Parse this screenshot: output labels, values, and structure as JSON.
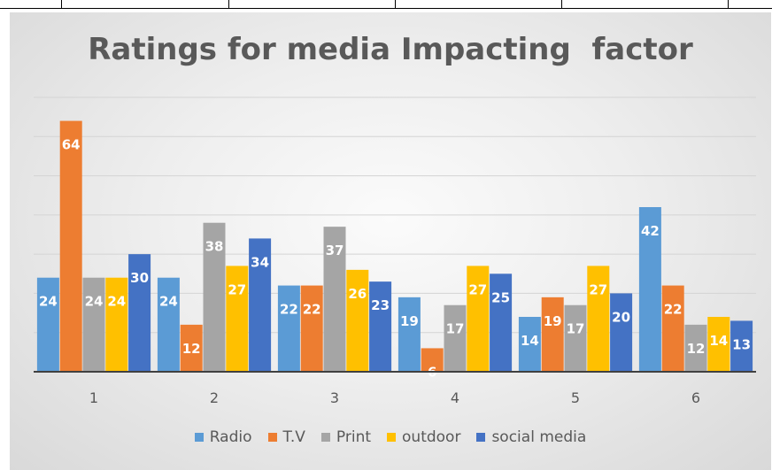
{
  "chart_data": {
    "type": "bar",
    "title": "Ratings for media Impacting  factor",
    "xlabel": "",
    "ylabel": "",
    "categories": [
      "1",
      "2",
      "3",
      "4",
      "5",
      "6"
    ],
    "ylim": [
      0,
      70
    ],
    "grid": true,
    "legend_position": "bottom",
    "series": [
      {
        "name": "Radio",
        "color": "#5b9bd5",
        "values": [
          24,
          24,
          22,
          19,
          14,
          42
        ]
      },
      {
        "name": "T.V",
        "color": "#ed7d31",
        "values": [
          64,
          12,
          22,
          6,
          19,
          22
        ]
      },
      {
        "name": "Print",
        "color": "#a5a5a5",
        "values": [
          24,
          38,
          37,
          17,
          17,
          12
        ]
      },
      {
        "name": "outdoor",
        "color": "#ffc000",
        "values": [
          24,
          27,
          26,
          27,
          27,
          14
        ]
      },
      {
        "name": "social media",
        "color": "#4472c4",
        "values": [
          30,
          34,
          23,
          25,
          20,
          13
        ]
      }
    ]
  }
}
